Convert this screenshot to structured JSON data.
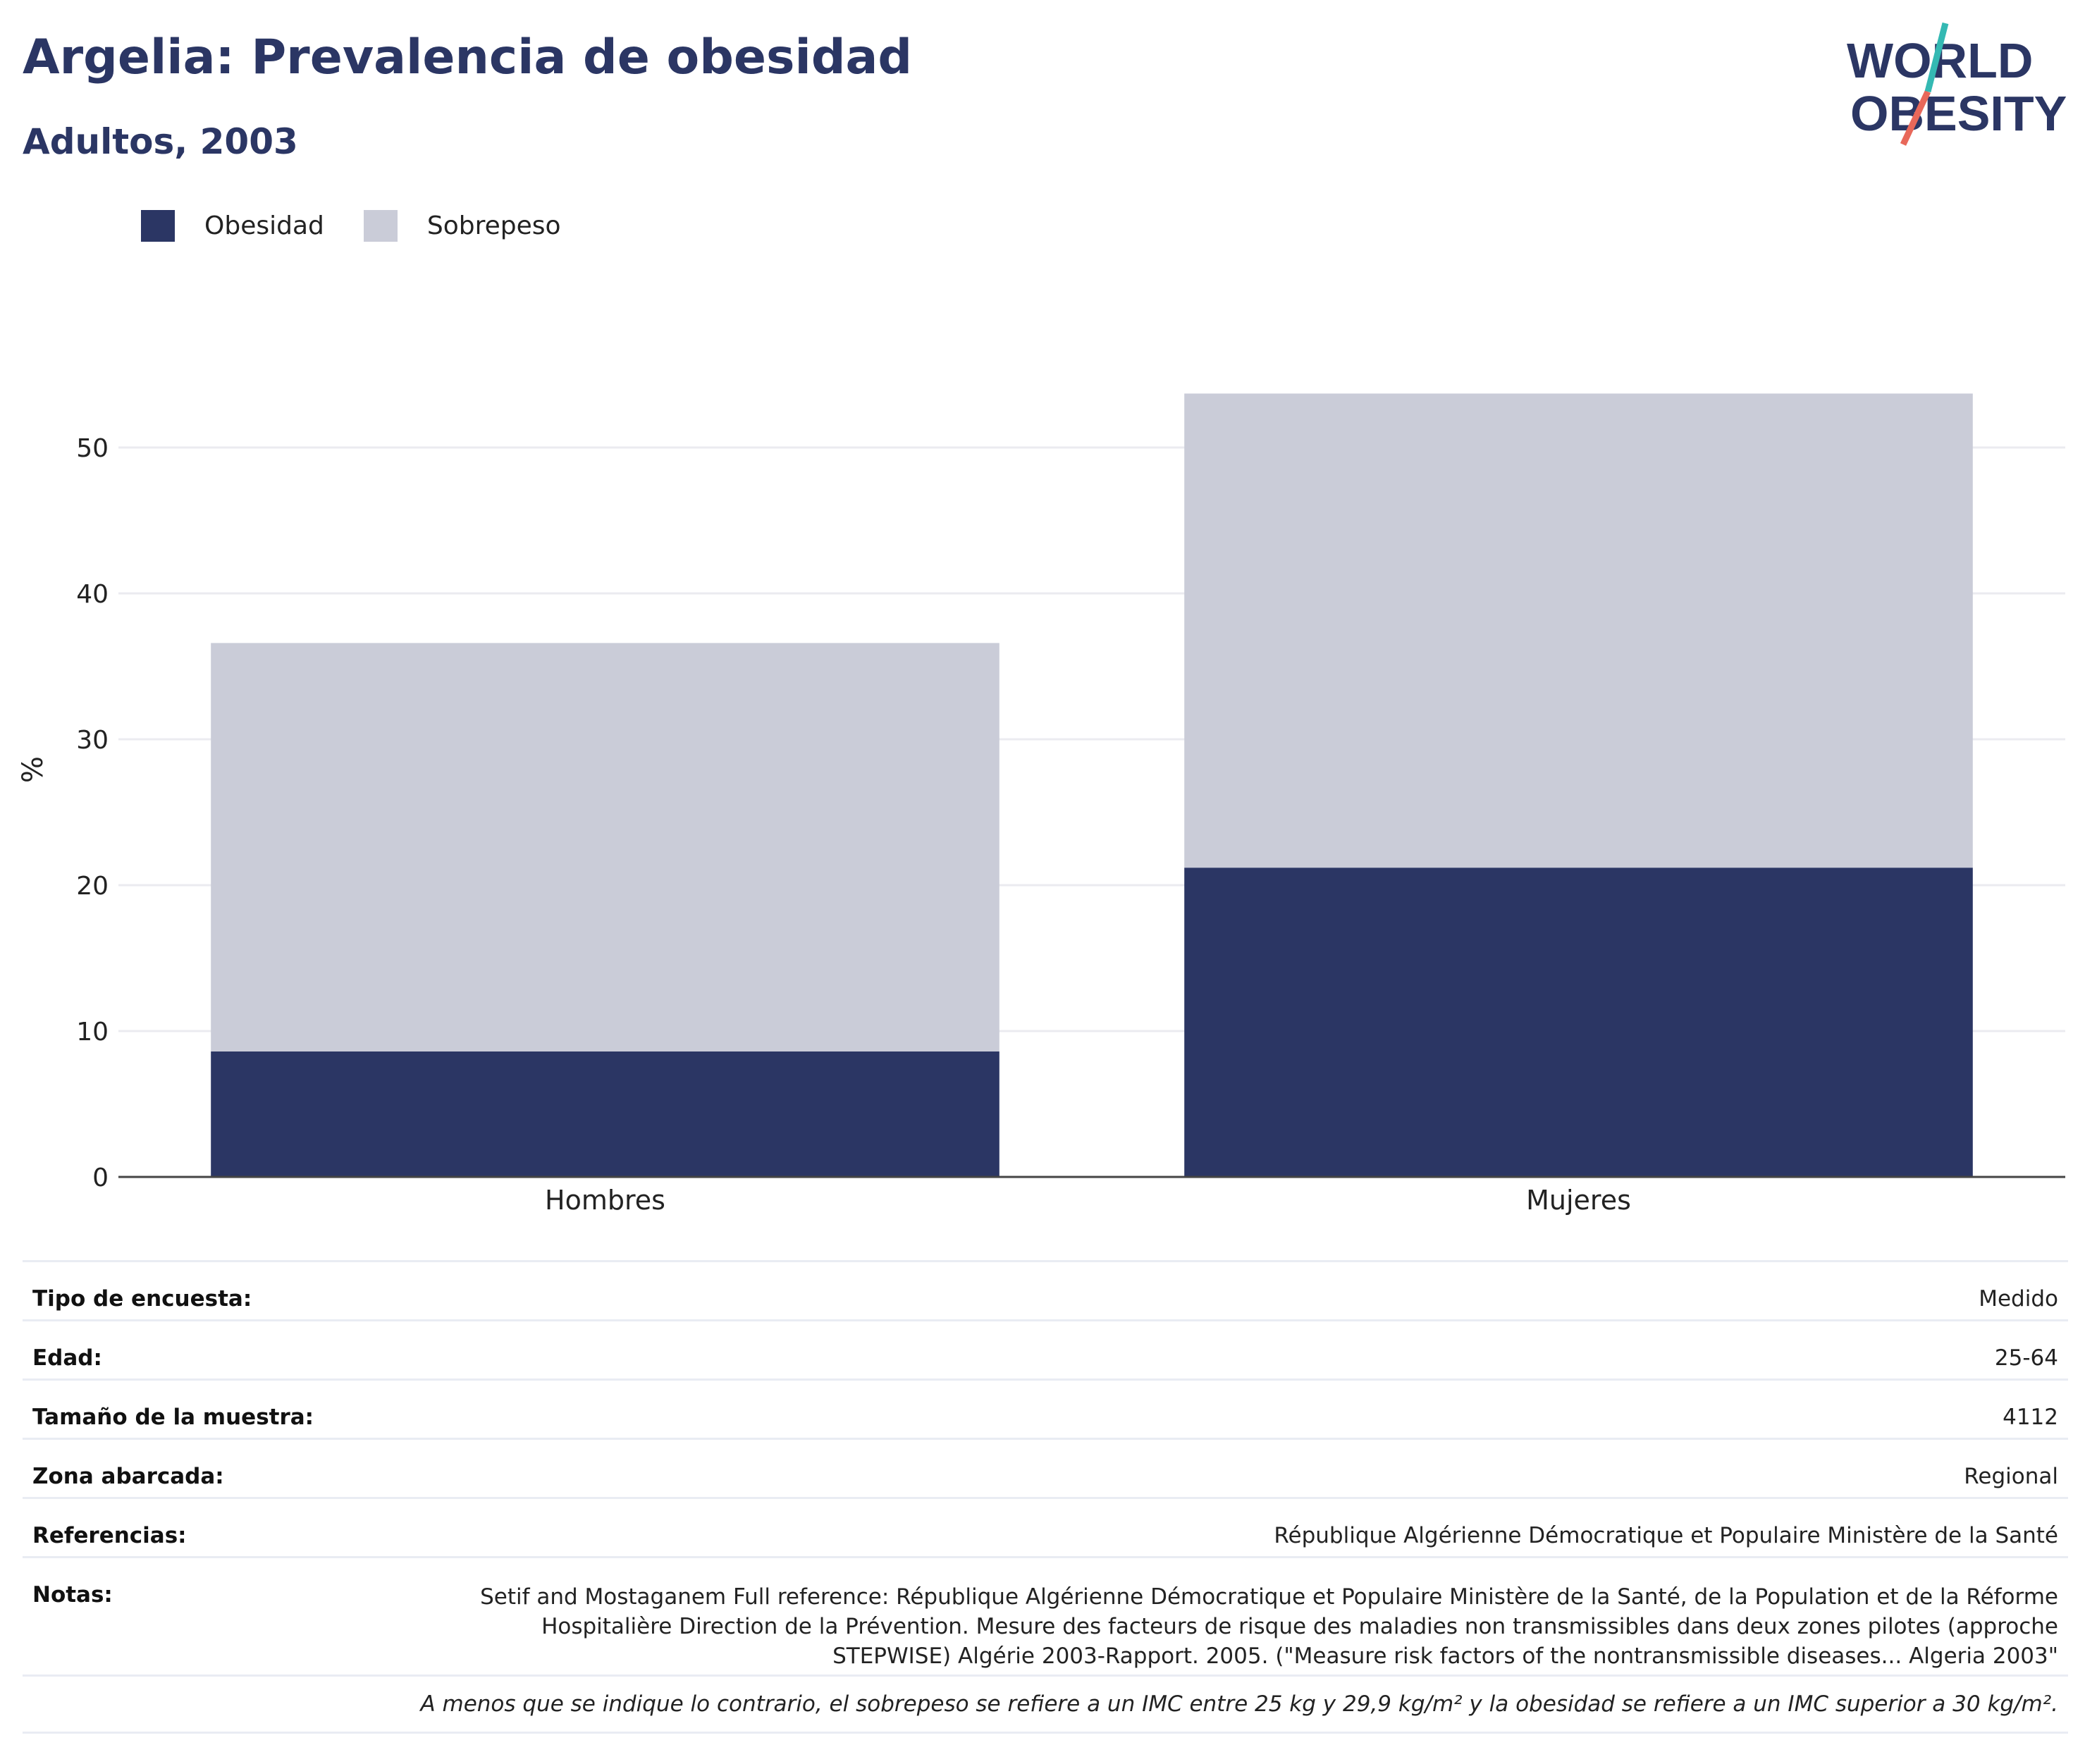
{
  "title": "Argelia: Prevalencia de obesidad",
  "subtitle": "Adultos, 2003",
  "logo": {
    "line1": "WORLD",
    "line2": "OBESITY"
  },
  "legend": [
    {
      "label": "Obesidad",
      "color": "#2b3664"
    },
    {
      "label": "Sobrepeso",
      "color": "#caccd8"
    }
  ],
  "chart_data": {
    "type": "bar",
    "stacked": true,
    "categories": [
      "Hombres",
      "Mujeres"
    ],
    "series": [
      {
        "name": "Obesidad",
        "color": "#2b3664",
        "values": [
          8.6,
          21.2
        ]
      },
      {
        "name": "Sobrepeso",
        "color": "#caccd8",
        "values": [
          28.0,
          32.5
        ]
      }
    ],
    "ylabel": "%",
    "ylim": [
      0,
      55
    ],
    "yticks": [
      0,
      10,
      20,
      30,
      40,
      50
    ],
    "grid": true,
    "legend_position": "top-left"
  },
  "info": {
    "survey_type": {
      "label": "Tipo de encuesta:",
      "value": "Medido"
    },
    "age": {
      "label": "Edad:",
      "value": "25-64"
    },
    "sample_size": {
      "label": "Tamaño de la muestra:",
      "value": "4112"
    },
    "area": {
      "label": "Zona abarcada:",
      "value": "Regional"
    },
    "references": {
      "label": "Referencias:",
      "value": "République Algérienne Démocratique et Populaire Ministère de la Santé"
    },
    "notes": {
      "label": "Notas:",
      "value": "Setif and Mostaganem Full reference: République Algérienne Démocratique et Populaire Ministère de la Santé, de la Population et de la Réforme Hospitalière Direction de la Prévention. Mesure des facteurs de risque des maladies non transmissibles dans deux zones pilotes (approche STEPWISE) Algérie 2003-Rapport. 2005. (\"Measure risk factors of the nontransmissible diseases... Algeria 2003\""
    }
  },
  "footnote": "A menos que se indique lo contrario, el sobrepeso se refiere a un IMC entre 25 kg y 29,9 kg/m² y la obesidad se refiere a un IMC superior a 30 kg/m²."
}
